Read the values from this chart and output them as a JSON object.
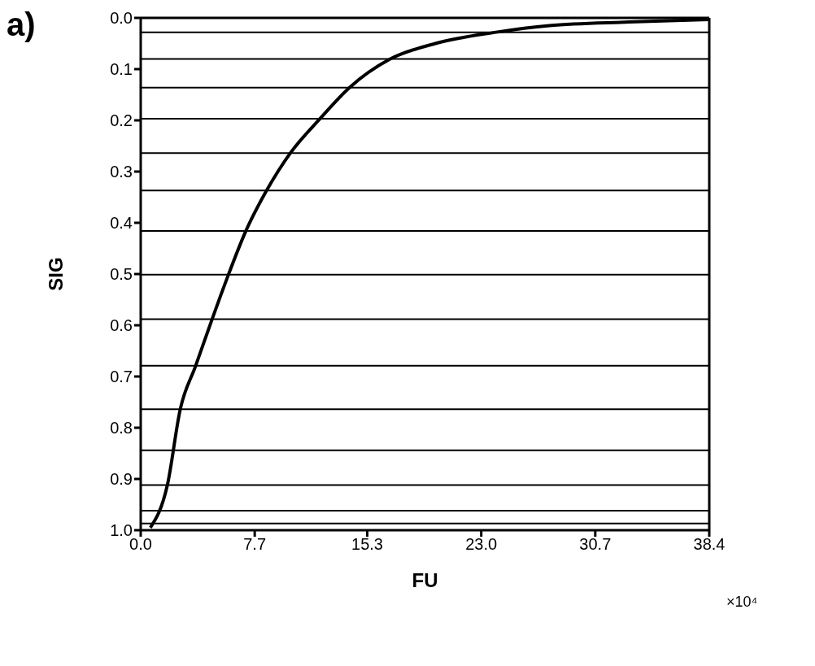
{
  "chart_data": {
    "type": "line",
    "xlabel": "FU",
    "ylabel": "SIG",
    "annotations": [
      "a)",
      "×10⁴"
    ],
    "xlim": [
      0,
      38.4
    ],
    "xticks": [
      {
        "value": 0,
        "label": "0.0"
      },
      7.7,
      15.3,
      {
        "value": 23,
        "label": "23.0"
      },
      30.7,
      38.4
    ],
    "ylim": [
      1,
      0
    ],
    "yticks": [
      {
        "value": 0,
        "label": "0.0"
      },
      0.1,
      0.2,
      0.3,
      0.4,
      0.5,
      0.6,
      0.7,
      0.8,
      0.9,
      {
        "value": 1,
        "label": "1.0"
      }
    ],
    "series": [
      {
        "color": "#000000",
        "x": [
          0.65,
          1.8,
          2.67,
          3.7,
          4.8,
          5.45,
          5.9,
          7.1,
          8.5,
          10.1,
          12.1,
          14.1,
          16.8,
          19.9,
          24.0,
          27.6,
          33.0,
          38.4
        ],
        "values": [
          0.995,
          0.912,
          0.764,
          0.68,
          0.59,
          0.538,
          0.503,
          0.416,
          0.337,
          0.264,
          0.197,
          0.136,
          0.081,
          0.05,
          0.028,
          0.015,
          0.008,
          0.003
        ]
      }
    ],
    "ref_lines": [
      {
        "axis": "y",
        "value": 0.028,
        "color": "#000000"
      },
      {
        "axis": "y",
        "value": 0.08,
        "color": "#000000"
      },
      {
        "axis": "y",
        "value": 0.136,
        "color": "#000000"
      },
      {
        "axis": "y",
        "value": 0.197,
        "color": "#000000"
      },
      {
        "axis": "y",
        "value": 0.264,
        "color": "#000000"
      },
      {
        "axis": "y",
        "value": 0.337,
        "color": "#000000"
      },
      {
        "axis": "y",
        "value": 0.416,
        "color": "#000000"
      },
      {
        "axis": "y",
        "value": 0.501,
        "color": "#000000"
      },
      {
        "axis": "y",
        "value": 0.588,
        "color": "#000000"
      },
      {
        "axis": "y",
        "value": 0.679,
        "color": "#000000"
      },
      {
        "axis": "y",
        "value": 0.764,
        "color": "#000000"
      },
      {
        "axis": "y",
        "value": 0.844,
        "color": "#000000"
      },
      {
        "axis": "y",
        "value": 0.912,
        "color": "#000000"
      },
      {
        "axis": "y",
        "value": 0.962,
        "color": "#000000"
      },
      {
        "axis": "y",
        "value": 0.987,
        "color": "#000000"
      }
    ]
  }
}
